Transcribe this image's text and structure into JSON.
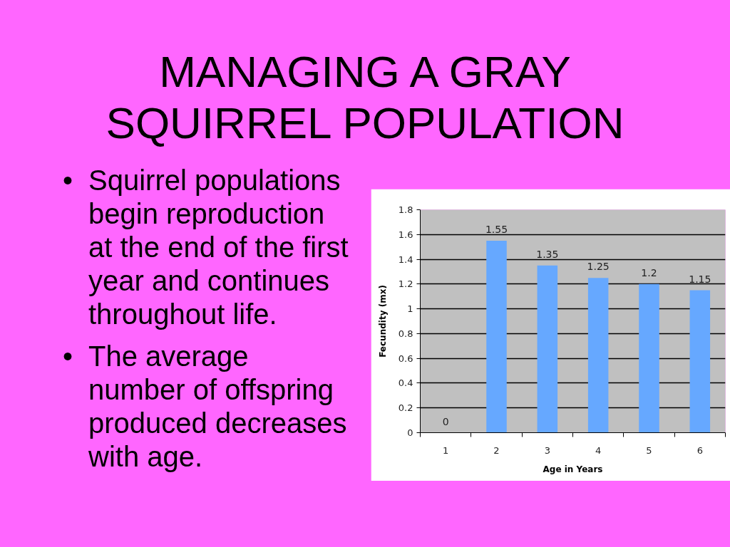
{
  "chart_data": {
    "type": "bar",
    "title": "MANAGING A GRAY SQUIRREL POPULATION",
    "xlabel": "Age in Years",
    "ylabel": "Fecundity (mx)",
    "annotations": [
      "• Squirrel populations begin reproduction at the end of the first year and continues throughout life.",
      "• The average number of offspring produced decreases with age."
    ],
    "categories": [
      "1",
      "2",
      "3",
      "4",
      "5",
      "6"
    ],
    "values": [
      0,
      1.55,
      1.35,
      1.25,
      1.2,
      1.15
    ],
    "color": "#66a8ff",
    "ylim": [
      0,
      1.8
    ],
    "yticks": [
      0,
      0.2,
      0.4,
      0.6,
      0.8,
      1,
      1.2,
      1.4,
      1.6,
      1.8
    ],
    "grid": "y",
    "data_labels": true
  }
}
